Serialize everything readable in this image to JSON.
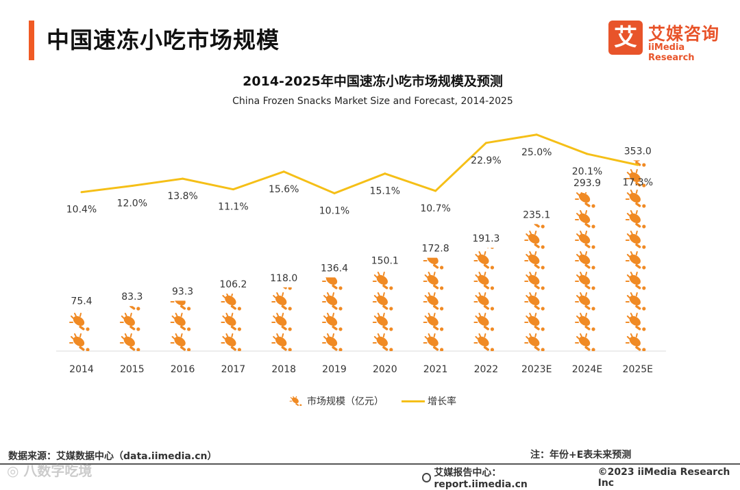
{
  "header": {
    "title": "中国速冻小吃市场规模",
    "accent_color": "#f05a24"
  },
  "logo": {
    "mark": "艾",
    "name_cn": "艾媒咨询",
    "name_en": "iiMedia Research",
    "color": "#e8542a"
  },
  "chart_data": {
    "type": "bar",
    "title": "2014-2025年中国速冻小吃市场规模及预测",
    "subtitle": "China Frozen Snacks Market Size and Forecast, 2014-2025",
    "categories": [
      "2014",
      "2015",
      "2016",
      "2017",
      "2018",
      "2019",
      "2020",
      "2021",
      "2022",
      "2023E",
      "2024E",
      "2025E"
    ],
    "series": [
      {
        "name": "市场规模（亿元）",
        "type": "bar",
        "values": [
          75.4,
          83.3,
          93.3,
          106.2,
          118.0,
          136.4,
          150.1,
          172.8,
          191.3,
          235.1,
          293.9,
          353.0
        ],
        "labels": [
          "75.4",
          "83.3",
          "93.3",
          "106.2",
          "118.0",
          "136.4",
          "150.1",
          "172.8",
          "191.3",
          "235.1",
          "293.9",
          "353.0"
        ],
        "color": "#f08a24",
        "icon": "fried-snack-icon"
      },
      {
        "name": "增长率",
        "type": "line",
        "values": [
          10.4,
          12.0,
          13.8,
          11.1,
          15.6,
          10.1,
          15.1,
          10.7,
          22.9,
          25.0,
          20.1,
          17.3
        ],
        "labels": [
          "10.4%",
          "12.0%",
          "13.8%",
          "11.1%",
          "15.6%",
          "10.1%",
          "15.1%",
          "10.7%",
          "22.9%",
          "25.0%",
          "20.1%",
          "17.3%"
        ],
        "color": "#f5bf17"
      }
    ],
    "ylim_bar": [
      0,
      380
    ],
    "ylim_line": [
      -30,
      30
    ],
    "grid": false,
    "legend_position": "bottom-center"
  },
  "source": "数据来源：艾媒数据中心（data.iimedia.cn）",
  "note": "注：年份+E表未来预测",
  "footer": {
    "report": "艾媒报告中心：report.iimedia.cn",
    "copyright": "©2023  iiMedia Research  Inc"
  },
  "watermark": "◎ 八数字吃境"
}
